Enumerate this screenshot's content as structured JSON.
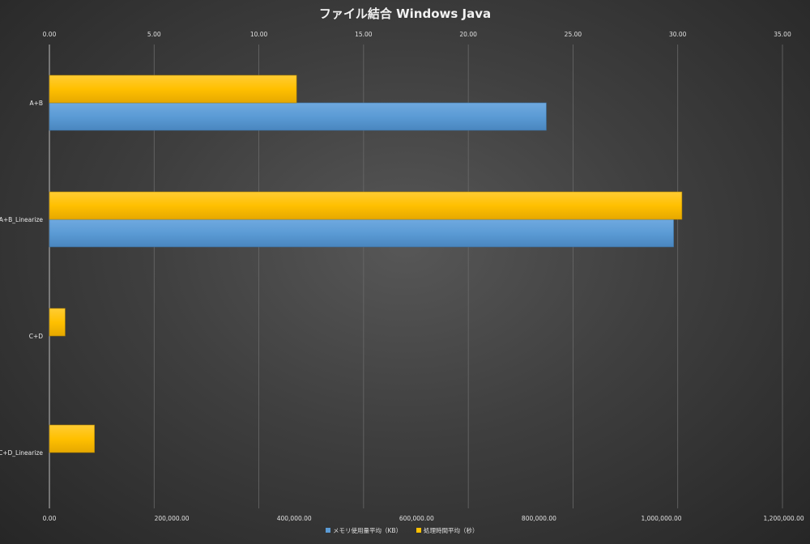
{
  "chart_data": {
    "type": "bar",
    "orientation": "horizontal",
    "title": "ファイル結合 Windows Java",
    "categories": [
      "A+B",
      "A+B_Linearize",
      "C+D",
      "C+D_Linearize"
    ],
    "series": [
      {
        "name": "メモリ使用量平均（KB）",
        "axis": "bottom",
        "color": "#5b9bd5",
        "values": [
          812000,
          1020000,
          0,
          0
        ]
      },
      {
        "name": "処理時間平均（秒）",
        "axis": "top",
        "color": "#ffc000",
        "values": [
          11.8,
          30.2,
          0.75,
          2.15
        ]
      }
    ],
    "x_bottom": {
      "ticks": [
        "0.00",
        "200,000.00",
        "400,000.00",
        "600,000.00",
        "800,000.00",
        "1,000,000.00",
        "1,200,000.00"
      ],
      "xlim": [
        0,
        1200000
      ]
    },
    "x_top": {
      "ticks": [
        "0.00",
        "5.00",
        "10.00",
        "15.00",
        "20.00",
        "25.00",
        "30.00",
        "35.00"
      ],
      "xlim": [
        0,
        35
      ]
    },
    "grid": true,
    "legend_position": "bottom"
  }
}
